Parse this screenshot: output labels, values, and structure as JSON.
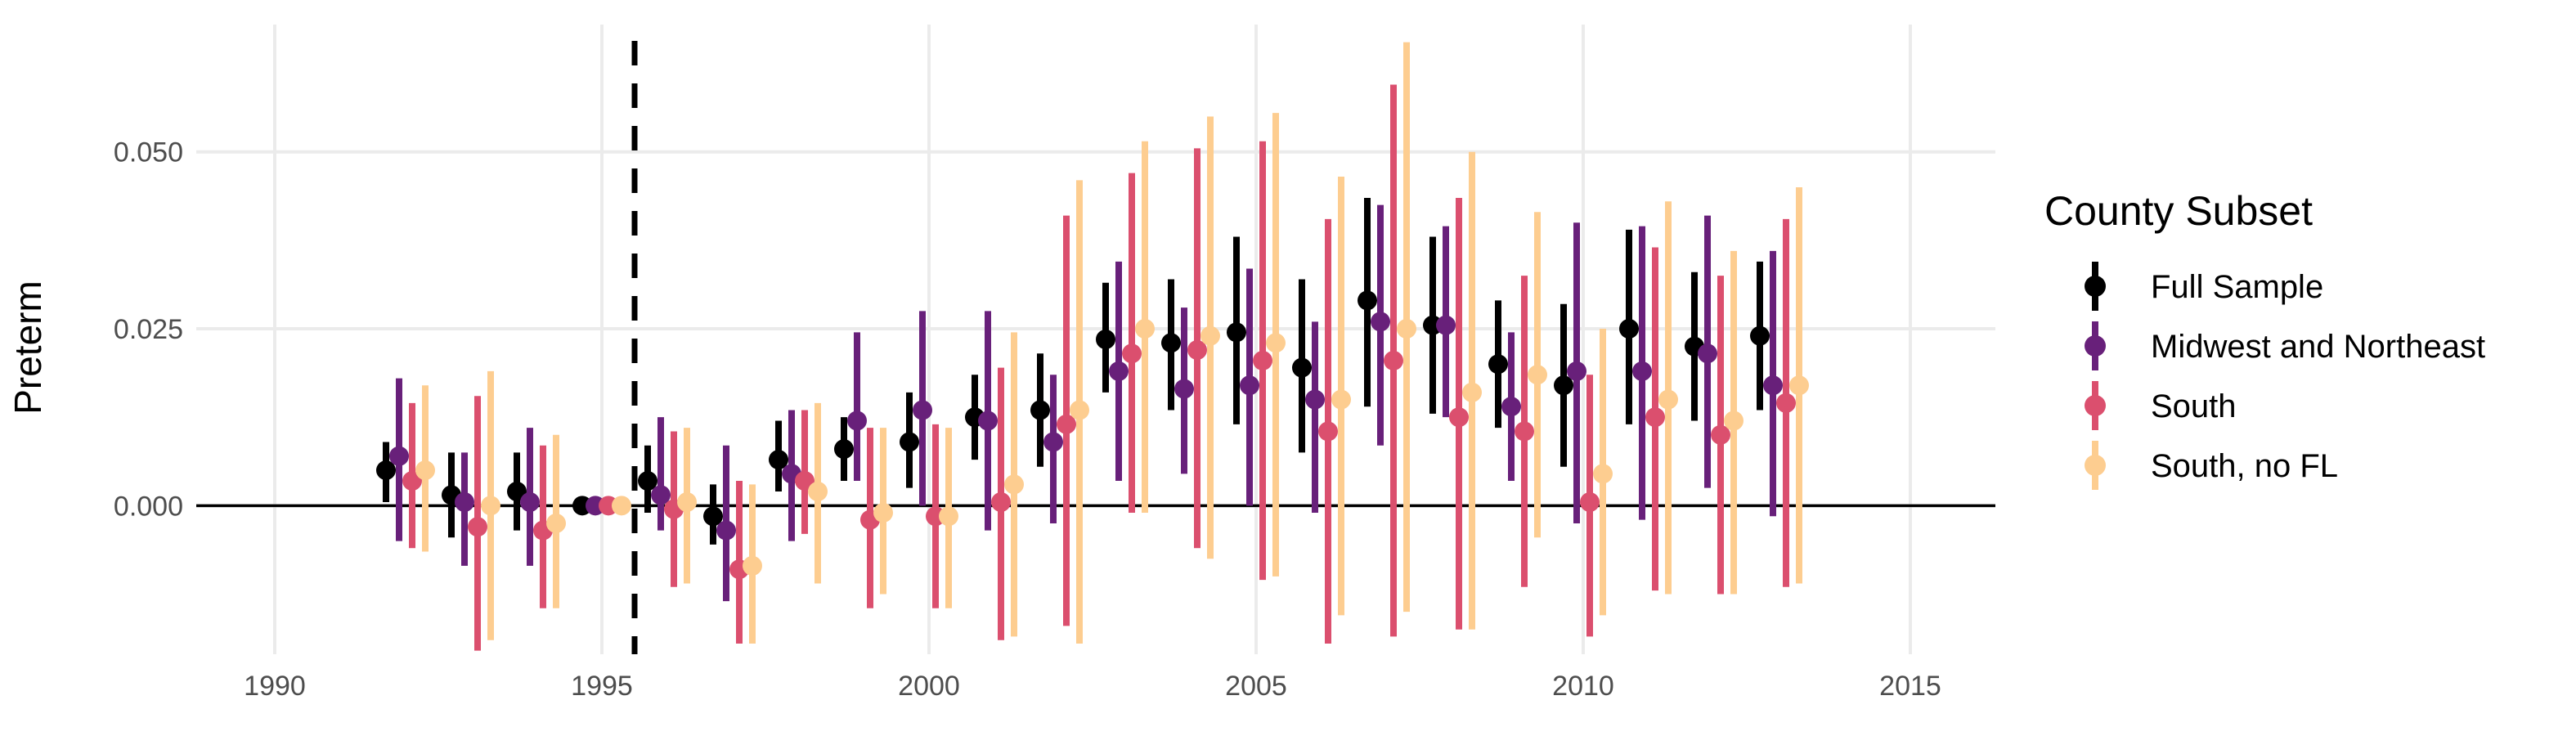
{
  "chart_data": {
    "type": "scatter",
    "subtype": "point-range (coefficient estimates with confidence intervals)",
    "title": "",
    "xlabel": "",
    "ylabel": "Preterm",
    "xlim": [
      1988.8,
      2016.3
    ],
    "ylim": [
      -0.021,
      0.068
    ],
    "x_ticks": [
      1990,
      1995,
      2000,
      2005,
      2010,
      2015
    ],
    "x_tick_labels": [
      "1990",
      "1995",
      "2000",
      "2005",
      "2010",
      "2015"
    ],
    "y_ticks": [
      0.0,
      0.025,
      0.05
    ],
    "y_tick_labels": [
      "0.000",
      "0.025",
      "0.050"
    ],
    "grid": true,
    "reference_hline_y": 0,
    "reference_vline_x": 1995.5,
    "legend": {
      "title": "County Subset",
      "position": "right"
    },
    "series": [
      {
        "name": "Full Sample",
        "color": "#000000",
        "x": [
          1992,
          1993,
          1994,
          1995,
          1996,
          1997,
          1998,
          1999,
          2000,
          2001,
          2002,
          2003,
          2004,
          2005,
          2006,
          2007,
          2008,
          2009,
          2010,
          2011,
          2012,
          2013
        ],
        "estimate": [
          0.005,
          0.0015,
          0.002,
          0.0,
          0.0035,
          -0.0015,
          0.0065,
          0.008,
          0.009,
          0.0125,
          0.0135,
          0.0235,
          0.023,
          0.0245,
          0.0195,
          0.029,
          0.0255,
          0.02,
          0.017,
          0.025,
          0.0225,
          0.024
        ],
        "lower": [
          0.0005,
          -0.0045,
          -0.0035,
          0.0,
          -0.001,
          -0.0055,
          0.002,
          0.0035,
          0.0025,
          0.0065,
          0.0055,
          0.016,
          0.0135,
          0.0115,
          0.0075,
          0.014,
          0.013,
          0.011,
          0.0055,
          0.0115,
          0.012,
          0.0135
        ],
        "upper": [
          0.009,
          0.0075,
          0.0075,
          0.0,
          0.0085,
          0.003,
          0.012,
          0.0125,
          0.016,
          0.0185,
          0.0215,
          0.0315,
          0.032,
          0.038,
          0.032,
          0.0435,
          0.038,
          0.029,
          0.0285,
          0.039,
          0.033,
          0.0345
        ]
      },
      {
        "name": "Midwest and Northeast",
        "color": "#68207a",
        "x": [
          1992,
          1993,
          1994,
          1995,
          1996,
          1997,
          1998,
          1999,
          2000,
          2001,
          2002,
          2003,
          2004,
          2005,
          2006,
          2007,
          2008,
          2009,
          2010,
          2011,
          2012,
          2013
        ],
        "estimate": [
          0.007,
          0.0005,
          0.0005,
          0.0,
          0.0015,
          -0.0035,
          0.0045,
          0.012,
          0.0135,
          0.012,
          0.009,
          0.019,
          0.0165,
          0.017,
          0.015,
          0.026,
          0.0255,
          0.014,
          0.019,
          0.019,
          0.0215,
          0.017
        ],
        "lower": [
          -0.005,
          -0.0085,
          -0.0085,
          0.0,
          -0.0035,
          -0.0135,
          -0.005,
          0.0035,
          0.0,
          -0.0035,
          -0.0025,
          0.0035,
          0.0045,
          0.0,
          -0.001,
          0.0085,
          0.0125,
          0.0035,
          -0.0025,
          -0.002,
          0.0025,
          -0.0015
        ],
        "upper": [
          0.018,
          0.0075,
          0.011,
          0.0,
          0.0125,
          0.0085,
          0.0135,
          0.0245,
          0.0275,
          0.0275,
          0.0185,
          0.0345,
          0.028,
          0.0335,
          0.026,
          0.0425,
          0.0395,
          0.0245,
          0.04,
          0.0395,
          0.041,
          0.036
        ]
      },
      {
        "name": "South",
        "color": "#db4f6e",
        "x": [
          1992,
          1993,
          1994,
          1995,
          1996,
          1997,
          1998,
          1999,
          2000,
          2001,
          2002,
          2003,
          2004,
          2005,
          2006,
          2007,
          2008,
          2009,
          2010,
          2011,
          2012,
          2013
        ],
        "estimate": [
          0.0035,
          -0.003,
          -0.0035,
          0.0,
          -0.0005,
          -0.009,
          0.0035,
          -0.002,
          -0.0015,
          0.0005,
          0.0115,
          0.0215,
          0.022,
          0.0205,
          0.0105,
          0.0205,
          0.0125,
          0.0105,
          0.0005,
          0.0125,
          0.01,
          0.0145
        ],
        "lower": [
          -0.006,
          -0.0205,
          -0.0145,
          0.0,
          -0.0115,
          -0.0195,
          -0.004,
          -0.0145,
          -0.0145,
          -0.019,
          -0.017,
          -0.001,
          -0.006,
          -0.0105,
          -0.0195,
          -0.0185,
          -0.0175,
          -0.0115,
          -0.0185,
          -0.012,
          -0.0125,
          -0.0115
        ],
        "upper": [
          0.0145,
          0.0155,
          0.0085,
          0.0,
          0.0105,
          0.0035,
          0.0135,
          0.011,
          0.0115,
          0.0195,
          0.041,
          0.047,
          0.0505,
          0.0515,
          0.0405,
          0.0595,
          0.0435,
          0.0325,
          0.0185,
          0.0365,
          0.0325,
          0.0405
        ]
      },
      {
        "name": "South, no FL",
        "color": "#fdcd90",
        "x": [
          1992,
          1993,
          1994,
          1995,
          1996,
          1997,
          1998,
          1999,
          2000,
          2001,
          2002,
          2003,
          2004,
          2005,
          2006,
          2007,
          2008,
          2009,
          2010,
          2011,
          2012,
          2013
        ],
        "estimate": [
          0.005,
          0.0,
          -0.0025,
          0.0,
          0.0005,
          -0.0085,
          0.002,
          -0.001,
          -0.0015,
          0.003,
          0.0135,
          0.025,
          0.024,
          0.023,
          0.015,
          0.025,
          0.016,
          0.0185,
          0.0045,
          0.015,
          0.012,
          0.017
        ],
        "lower": [
          -0.0065,
          -0.019,
          -0.0145,
          0.0,
          -0.011,
          -0.0195,
          -0.011,
          -0.0125,
          -0.0145,
          -0.0185,
          -0.0195,
          -0.001,
          -0.0075,
          -0.01,
          -0.0155,
          -0.015,
          -0.0175,
          -0.0045,
          -0.0155,
          -0.0125,
          -0.0125,
          -0.011
        ],
        "upper": [
          0.017,
          0.019,
          0.01,
          0.0,
          0.011,
          0.003,
          0.0145,
          0.011,
          0.011,
          0.0245,
          0.046,
          0.0515,
          0.055,
          0.0555,
          0.0465,
          0.0655,
          0.05,
          0.0415,
          0.025,
          0.043,
          0.036,
          0.045
        ]
      }
    ]
  }
}
